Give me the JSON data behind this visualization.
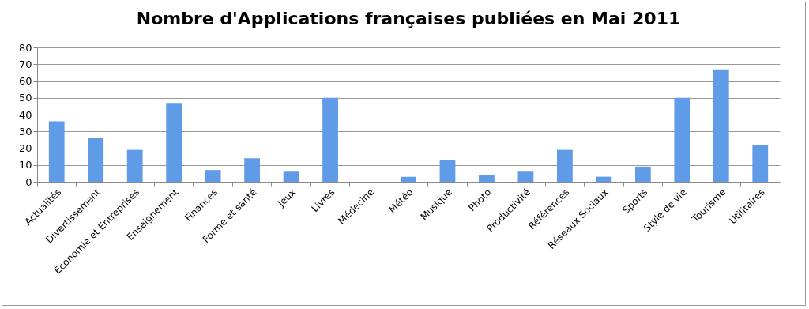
{
  "chart_data": {
    "type": "bar",
    "title": "Nombre d'Applications françaises publiées en Mai 2011",
    "categories": [
      "Actualités",
      "Divertissement",
      "Économie et Entreprises",
      "Enseignement",
      "Finances",
      "Forme et santé",
      "Jeux",
      "Livres",
      "Médecine",
      "Météo",
      "Musique",
      "Photo",
      "Productivité",
      "Références",
      "Réseaux Sociaux",
      "Sports",
      "Style de vie",
      "Tourisme",
      "Utilitaires"
    ],
    "values": [
      36,
      26,
      19,
      47,
      7,
      14,
      6,
      50,
      0,
      3,
      13,
      4,
      6,
      19,
      3,
      9,
      50,
      67,
      22
    ],
    "color": "#5f9be6",
    "ylim": [
      0,
      80
    ],
    "yticks": [
      0,
      10,
      20,
      30,
      40,
      50,
      60,
      70,
      80
    ],
    "grid": "y"
  }
}
